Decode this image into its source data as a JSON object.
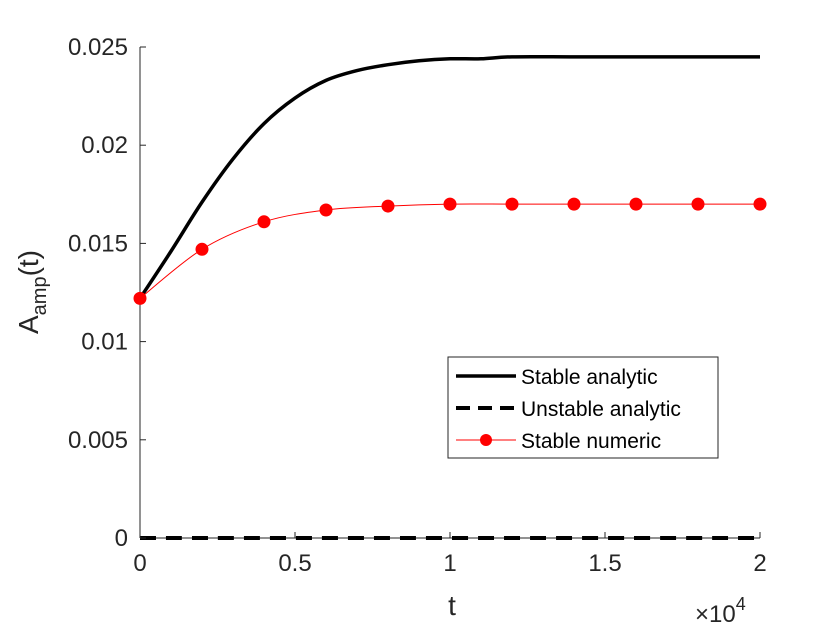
{
  "chart_data": {
    "type": "line",
    "xlabel": "t",
    "ylabel": {
      "base": "A",
      "subscript": "amp",
      "suffix": "(t)"
    },
    "x_multiplier": {
      "base": "×10",
      "exponent": "4"
    },
    "xlim": [
      0,
      20000
    ],
    "ylim": [
      0,
      0.025
    ],
    "xticks": [
      0,
      5000,
      10000,
      15000,
      20000
    ],
    "xtick_labels": [
      "0",
      "0.5",
      "1",
      "1.5",
      "2"
    ],
    "yticks": [
      0,
      0.005,
      0.01,
      0.015,
      0.02,
      0.025
    ],
    "ytick_labels": [
      "0",
      "0.005",
      "0.01",
      "0.015",
      "0.02",
      "0.025"
    ],
    "grid": false,
    "legend_position": "lower-right",
    "series": [
      {
        "name": "Stable analytic",
        "style": "solid",
        "color": "#000000",
        "x": [
          0,
          1000,
          2000,
          3000,
          4000,
          5000,
          6000,
          7000,
          8000,
          9000,
          10000,
          11000,
          12000,
          14000,
          16000,
          18000,
          20000
        ],
        "y": [
          0.0122,
          0.0146,
          0.0171,
          0.0193,
          0.0211,
          0.0224,
          0.0233,
          0.0238,
          0.0241,
          0.0243,
          0.0244,
          0.0244,
          0.0245,
          0.0245,
          0.0245,
          0.0245,
          0.0245
        ]
      },
      {
        "name": "Unstable analytic",
        "style": "dashed",
        "color": "#000000",
        "x": [
          0,
          20000
        ],
        "y": [
          0,
          0
        ]
      },
      {
        "name": "Stable numeric",
        "style": "solid-markers",
        "color": "#ff0000",
        "x": [
          0,
          2000,
          4000,
          6000,
          8000,
          10000,
          12000,
          14000,
          16000,
          18000,
          20000
        ],
        "y": [
          0.0122,
          0.0147,
          0.0161,
          0.0167,
          0.0169,
          0.017,
          0.017,
          0.017,
          0.017,
          0.017,
          0.017
        ]
      }
    ]
  }
}
